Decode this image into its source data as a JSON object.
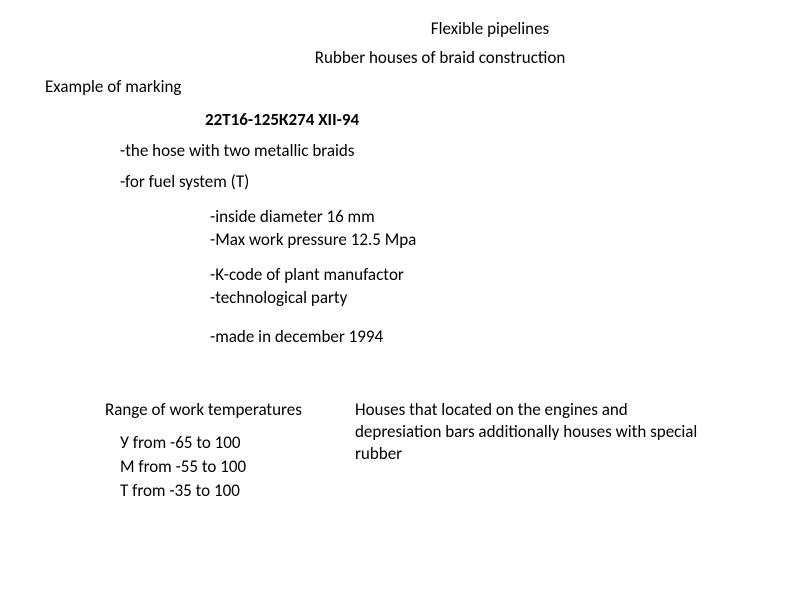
{
  "title": "Flexible pipelines",
  "subtitle": "Rubber houses of braid construction",
  "exampleHeading": "Example of marking",
  "markingCode": "22Т16-125К274 XII-94",
  "specs": {
    "item1": "-the hose with two metallic braids",
    "item2": "-for fuel system (T)",
    "item3": "-inside diameter 16 mm",
    "item4": "-Max work pressure 12.5 Mpa",
    "item5": "-K-code of  plant manufactоr",
    "item6": "-technological party",
    "item7": "-made in december 1994"
  },
  "noteText": "Houses that located on the engines and depresiation bars additionally houses with special rubber",
  "rangeHeading": "Range of work temperatures",
  "ranges": {
    "r1": "У from -65 to 100",
    "r2": "М from -55 to 100",
    "r3": "Т from -35 to 100"
  },
  "styling": {
    "fontFamily": "Calibri",
    "fontSize": 17,
    "textColor": "#000000",
    "backgroundColor": "#ffffff",
    "boldFontWeight": 700
  }
}
